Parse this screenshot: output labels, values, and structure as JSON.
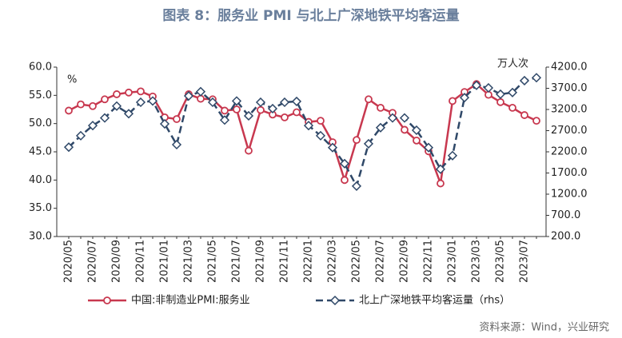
{
  "chart_data": {
    "type": "line",
    "title": "图表 8：服务业 PMI 与北上广深地铁平均客运量",
    "y_unit": "%",
    "y2_unit": "万人次",
    "source": "资料来源：Wind，兴业研究",
    "categories": [
      "2020/05",
      null,
      "2020/07",
      null,
      "2020/09",
      null,
      "2020/11",
      null,
      "2021/01",
      null,
      "2021/03",
      null,
      "2021/05",
      null,
      "2021/07",
      null,
      "2021/09",
      null,
      "2021/11",
      null,
      "2022/01",
      null,
      "2022/03",
      null,
      "2022/05",
      null,
      "2022/07",
      null,
      "2022/09",
      null,
      "2022/11",
      null,
      "2023/01",
      null,
      "2023/03",
      null,
      "2023/05",
      null,
      "2023/07",
      null
    ],
    "series": [
      {
        "name": "中国:非制造业PMI:服务业",
        "color": "#c8384f",
        "axis": "y",
        "values": [
          52.3,
          53.4,
          53.1,
          54.3,
          55.2,
          55.5,
          55.7,
          54.8,
          51.1,
          50.8,
          55.2,
          54.4,
          54.3,
          52.3,
          52.5,
          45.2,
          52.4,
          51.6,
          51.1,
          52.0,
          50.3,
          50.5,
          46.7,
          40.0,
          47.1,
          54.3,
          52.8,
          51.9,
          48.9,
          47.0,
          45.1,
          39.4,
          54.0,
          55.6,
          57.0,
          55.1,
          53.8,
          52.8,
          51.5,
          50.5
        ]
      },
      {
        "name": "北上广深地铁平均客运量（rhs）",
        "color": "#2f4868",
        "axis": "y2",
        "values": [
          2310,
          2580,
          2820,
          3000,
          3280,
          3100,
          3370,
          3400,
          2860,
          2370,
          3520,
          3620,
          3370,
          2950,
          3400,
          3050,
          3370,
          3220,
          3370,
          3390,
          2820,
          2580,
          2300,
          1920,
          1390,
          2390,
          2770,
          3000,
          3000,
          2710,
          2300,
          1790,
          2110,
          3480,
          3770,
          3710,
          3560,
          3600,
          3880,
          3950
        ]
      }
    ],
    "ylim": [
      30,
      60
    ],
    "yticks": [
      {
        "value": 30,
        "label": "30.0"
      },
      {
        "value": 35,
        "label": "35.0"
      },
      {
        "value": 40,
        "label": "40.0"
      },
      {
        "value": 45,
        "label": "45.0"
      },
      {
        "value": 50,
        "label": "50.0"
      },
      {
        "value": 55,
        "label": "55.0"
      },
      {
        "value": 60,
        "label": "60.0"
      }
    ],
    "y2lim": [
      200,
      4200
    ],
    "y2ticks": [
      {
        "value": 200,
        "label": "200.0"
      },
      {
        "value": 700,
        "label": "700.0"
      },
      {
        "value": 1200,
        "label": "1200.0"
      },
      {
        "value": 1700,
        "label": "1700.0"
      },
      {
        "value": 2200,
        "label": "2200.0"
      },
      {
        "value": 2700,
        "label": "2700.0"
      },
      {
        "value": 3200,
        "label": "3200.0"
      },
      {
        "value": 3700,
        "label": "3700.0"
      },
      {
        "value": 4200,
        "label": "4200.0"
      }
    ],
    "legend": "bottom",
    "grid": false
  }
}
